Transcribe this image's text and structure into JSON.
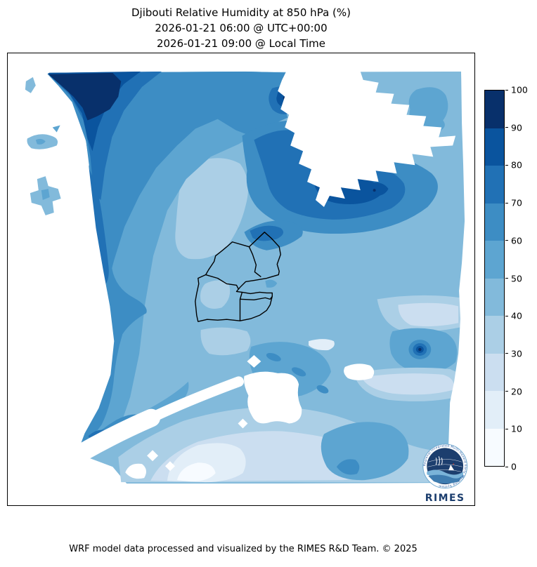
{
  "figure": {
    "title_line1": "Djibouti Relative Humidity at 850 hPa (%)",
    "title_line2": "2026-01-21 06:00 @ UTC+00:00",
    "title_line3": "2026-01-21 09:00 @ Local Time",
    "footer": "WRF model data processed and visualized by the RIMES R&D Team. © 2025"
  },
  "colorbar": {
    "levels": [
      0,
      10,
      20,
      30,
      40,
      50,
      60,
      70,
      80,
      90,
      100
    ],
    "colors": [
      "#f7fbff",
      "#e2eef8",
      "#cbdef0",
      "#abcfe6",
      "#82badb",
      "#5da5d1",
      "#3d8dc4",
      "#2171b5",
      "#0a549e",
      "#08306b"
    ],
    "outline_color": "#000000"
  },
  "map": {
    "frame_color": "#000000",
    "boundary_color": "#000000",
    "nodata_color": "#ffffff",
    "region_label": "Djibouti administrative boundaries"
  },
  "logo": {
    "acronym": "RIMES",
    "ring_text": "Regional Integrated Multi-Hazard Early Warning System",
    "navy": "#1c3e6e",
    "blue": "#2458a0",
    "light_blue": "#7ab3d8",
    "mid_blue": "#3e7cb0",
    "ring_stroke": "#6fa8cf"
  },
  "chart_data": {
    "type": "heatmap",
    "title": "Djibouti Relative Humidity at 850 hPa (%)",
    "subtitle_utc": "2026-01-21 06:00 @ UTC+00:00",
    "subtitle_local": "2026-01-21 09:00 @ Local Time",
    "variable": "Relative Humidity",
    "units": "%",
    "pressure_level": "850 hPa",
    "region": "Djibouti",
    "colormap": "Blues",
    "contour_levels": [
      0,
      10,
      20,
      30,
      40,
      50,
      60,
      70,
      80,
      90,
      100
    ],
    "colorbar_range": [
      0,
      100
    ],
    "legend_position": "right",
    "field_summary": {
      "northwest_band": "70-100 (dark maximum band along upper-left)",
      "north_center_below_masked_wedge": "70-90 with small 90-100 cores",
      "center_around_djibouti": "40-60",
      "pale_patch_center_west": "30-40",
      "east_side_bands": "20-40 light bands",
      "southeast_bullseye_spot": "60-100 concentric maximum near lower right",
      "south_band": "0-40 light values with near-white minima",
      "masked_no_data": "white regions: west strip, northeast wedge, south margin, lakes"
    }
  }
}
